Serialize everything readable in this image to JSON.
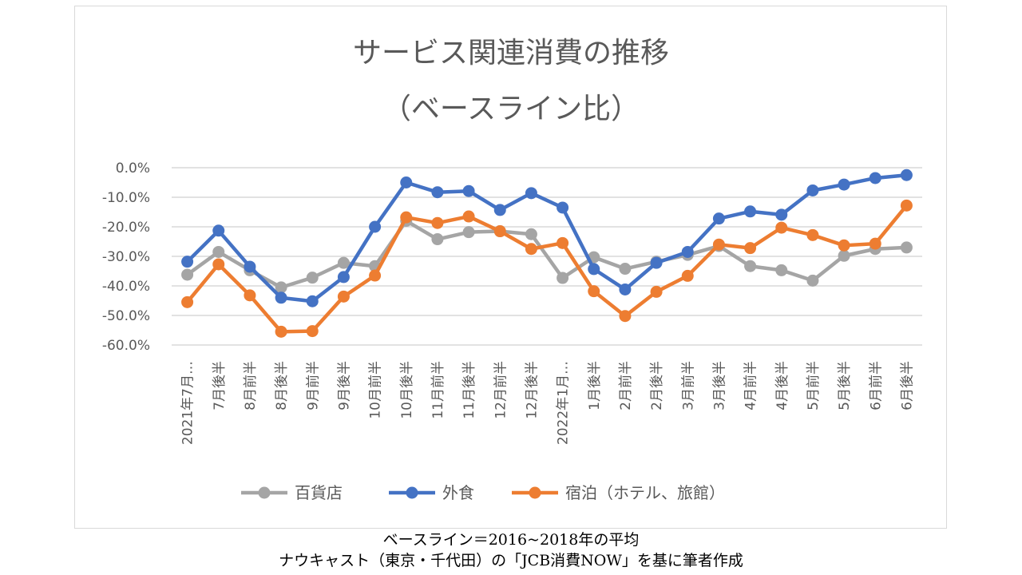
{
  "chart_data": {
    "type": "line",
    "title": "サービス関連消費の推移",
    "subtitle": "（ベースライン比）",
    "xlabel": "",
    "ylabel": "",
    "ylim": [
      -0.6,
      0
    ],
    "yticks": [
      "0.0%",
      "-10.0%",
      "-20.0%",
      "-30.0%",
      "-40.0%",
      "-50.0%",
      "-60.0%"
    ],
    "ytick_values": [
      0,
      -0.1,
      -0.2,
      -0.3,
      -0.4,
      -0.5,
      -0.6
    ],
    "grid": true,
    "legend_position": "bottom",
    "categories": [
      "2021年7月…",
      "7月後半",
      "8月前半",
      "8月後半",
      "9月前半",
      "9月後半",
      "10月前半",
      "10月後半",
      "11月前半",
      "11月後半",
      "12月前半",
      "12月後半",
      "2022年1月…",
      "1月後半",
      "2月前半",
      "2月後半",
      "3月前半",
      "3月後半",
      "4月前半",
      "4月後半",
      "5月前半",
      "5月後半",
      "6月前半",
      "6月後半"
    ],
    "series": [
      {
        "name": "百貨店",
        "color": "#a5a5a5",
        "values": [
          -0.362,
          -0.285,
          -0.347,
          -0.405,
          -0.372,
          -0.322,
          -0.333,
          -0.18,
          -0.242,
          -0.218,
          -0.215,
          -0.225,
          -0.373,
          -0.303,
          -0.342,
          -0.318,
          -0.295,
          -0.265,
          -0.333,
          -0.347,
          -0.382,
          -0.298,
          -0.275,
          -0.27
        ]
      },
      {
        "name": "外食",
        "color": "#4472c4",
        "values": [
          -0.318,
          -0.213,
          -0.335,
          -0.44,
          -0.452,
          -0.37,
          -0.2,
          -0.05,
          -0.083,
          -0.079,
          -0.143,
          -0.086,
          -0.135,
          -0.343,
          -0.412,
          -0.322,
          -0.285,
          -0.172,
          -0.148,
          -0.159,
          -0.077,
          -0.057,
          -0.035,
          -0.025
        ]
      },
      {
        "name": "宿泊（ホテル、旅館）",
        "color": "#ed7d31",
        "values": [
          -0.455,
          -0.327,
          -0.432,
          -0.555,
          -0.553,
          -0.436,
          -0.365,
          -0.168,
          -0.187,
          -0.165,
          -0.215,
          -0.275,
          -0.255,
          -0.418,
          -0.502,
          -0.42,
          -0.366,
          -0.26,
          -0.272,
          -0.203,
          -0.228,
          -0.263,
          -0.257,
          -0.128
        ]
      }
    ]
  },
  "captions": {
    "line1": "ベースライン＝2016~2018年の平均",
    "line2": "ナウキャスト（東京・千代田）の「JCB消費NOW」を基に筆者作成"
  }
}
